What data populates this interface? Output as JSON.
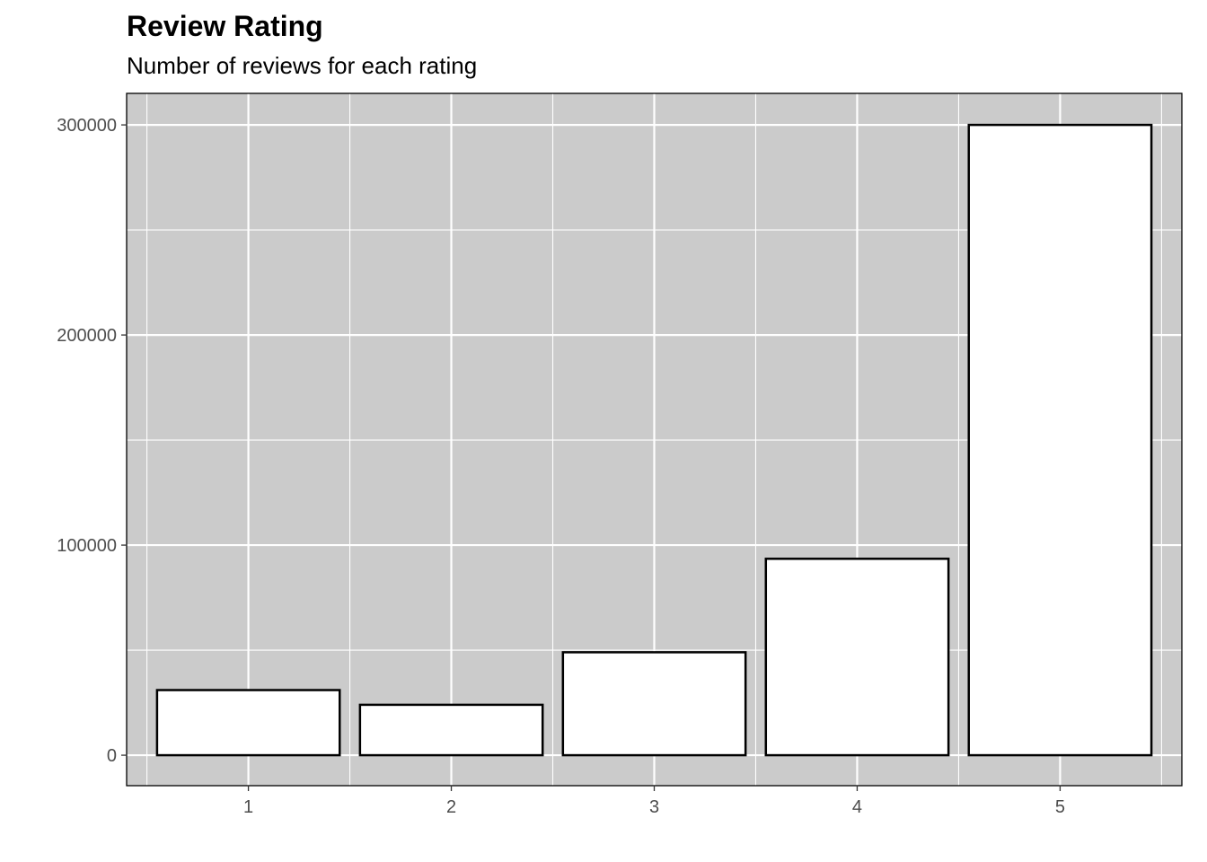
{
  "chart_data": {
    "type": "bar",
    "title": "Review Rating",
    "subtitle": "Number of reviews for each rating",
    "xlabel": "",
    "ylabel": "",
    "categories": [
      "1",
      "2",
      "3",
      "4",
      "5"
    ],
    "values": [
      31000,
      24000,
      49000,
      93500,
      300000
    ],
    "ylim": [
      -14500,
      315000
    ],
    "yticks": [
      0,
      100000,
      200000,
      300000
    ],
    "ytick_labels": [
      "0",
      "100000",
      "200000",
      "300000"
    ],
    "y_minor_ticks": [
      50000,
      150000,
      250000
    ],
    "grid": true,
    "legend": "none",
    "colors": {
      "panel_background": "#cbcbcb",
      "grid": "#ffffff",
      "bar_fill": "#ffffff",
      "bar_outline": "#000000",
      "panel_border": "#000000",
      "tick_text": "#4d4d4d"
    }
  }
}
